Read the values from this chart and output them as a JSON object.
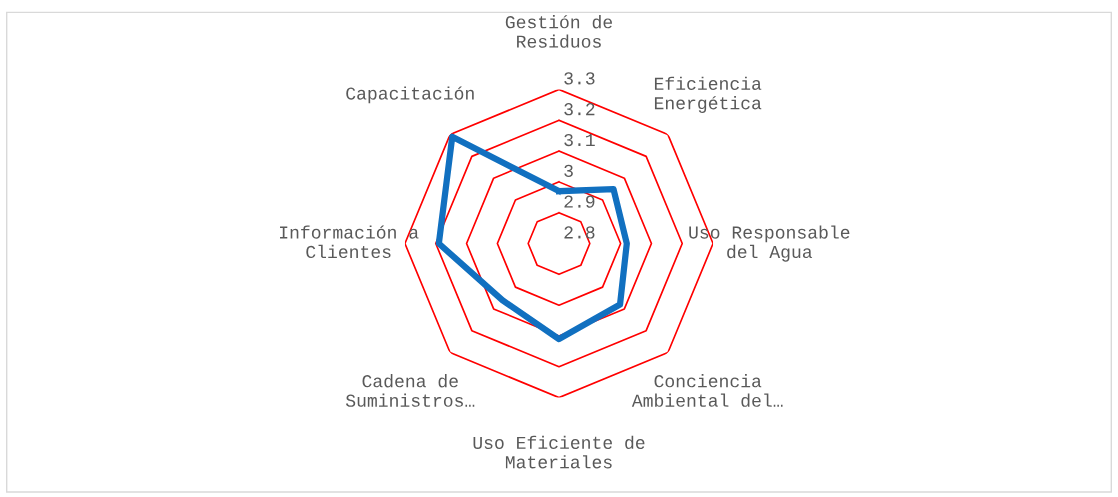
{
  "chart_data": {
    "type": "radar",
    "categories": [
      "Gestión de Residuos",
      "Eficiencia Energética",
      "Uso Responsable del Agua",
      "Conciencia Ambiental del…",
      "Uso Eficiente de Materiales",
      "Cadena de Suministros…",
      "Información a Clientes",
      "Capacitación"
    ],
    "series": [
      {
        "color": "#1170c0",
        "values": [
          2.97,
          3.05,
          3.02,
          3.08,
          3.11,
          3.06,
          3.19,
          3.29
        ]
      }
    ],
    "ylim": [
      2.8,
      3.3
    ],
    "yticks": [
      2.8,
      2.9,
      3,
      3.1,
      3.2,
      3.3
    ],
    "grid": true,
    "legend": false
  }
}
